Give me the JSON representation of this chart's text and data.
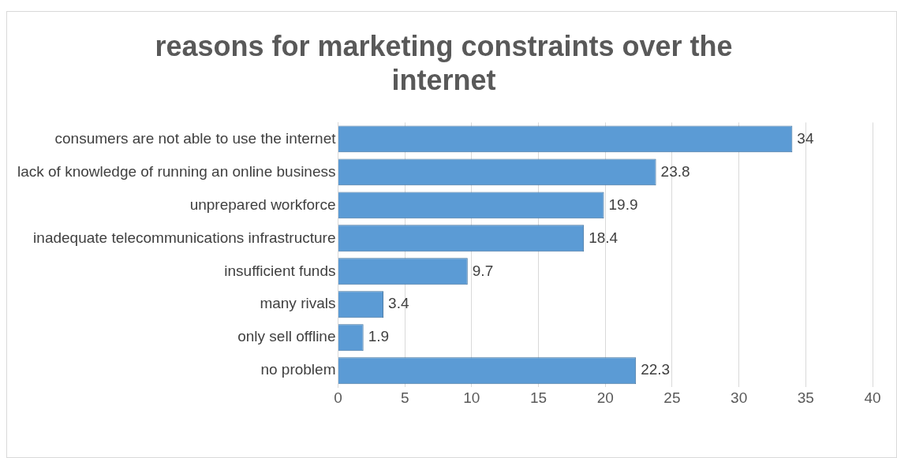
{
  "chart_data": {
    "type": "bar",
    "orientation": "horizontal",
    "title": "reasons for marketing constraints over the internet",
    "categories": [
      "consumers are not able to use the internet",
      "lack of knowledge of running an online business",
      "unprepared workforce",
      "inadequate telecommunications infrastructure",
      "insufficient funds",
      "many rivals",
      "only sell offline",
      "no problem"
    ],
    "series": [
      {
        "color": "#5b9bd5",
        "values": [
          34,
          23.8,
          19.9,
          18.4,
          9.7,
          3.4,
          1.9,
          22.3
        ]
      }
    ],
    "xlim": [
      0,
      40
    ],
    "xticks": [
      0,
      5,
      10,
      15,
      20,
      25,
      30,
      35,
      40
    ],
    "grid": "x",
    "data_labels": true
  }
}
